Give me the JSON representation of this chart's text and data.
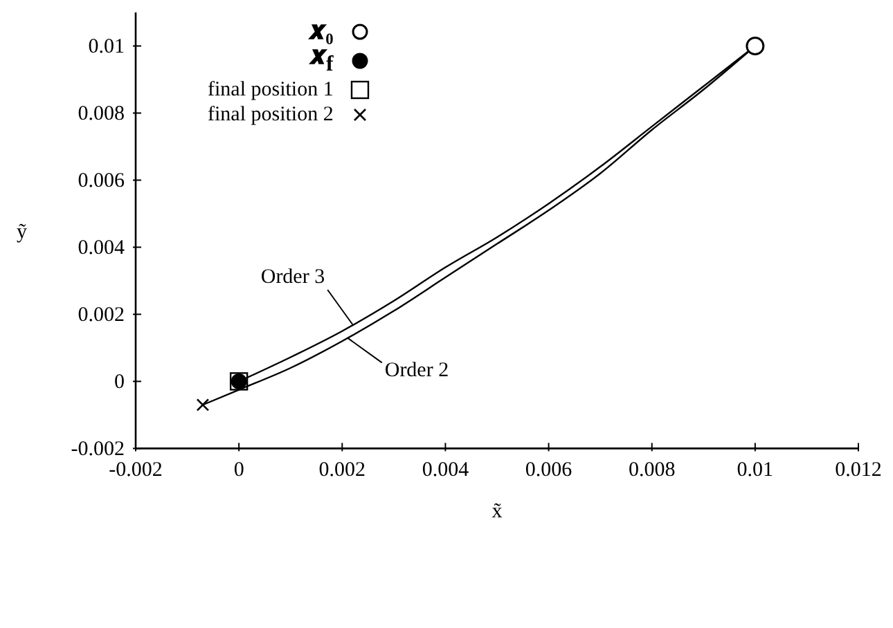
{
  "chart_data": {
    "type": "line",
    "xlabel": "x̃",
    "ylabel": "ỹ",
    "xlim": [
      -0.002,
      0.012
    ],
    "xticks": [
      -0.002,
      0,
      0.002,
      0.004,
      0.006,
      0.008,
      0.01,
      0.012
    ],
    "ylim": [
      -0.002,
      0.011
    ],
    "yticks": [
      -0.002,
      0,
      0.002,
      0.004,
      0.006,
      0.008,
      0.01
    ],
    "grid": false,
    "legend": "top left",
    "line_style": "solid",
    "series": [
      {
        "color": "#000000",
        "x": [
          0,
          0.001,
          0.002,
          0.003,
          0.004,
          0.005,
          0.006,
          0.007,
          0.008,
          0.009,
          0.01
        ],
        "values": [
          0,
          0.00072,
          0.0015,
          0.0024,
          0.0034,
          0.0043,
          0.0053,
          0.0064,
          0.0076,
          0.0088,
          0.01
        ]
      },
      {
        "color": "#000000",
        "x": [
          -0.0007,
          0,
          0.001,
          0.002,
          0.003,
          0.004,
          0.005,
          0.006,
          0.007,
          0.008,
          0.009,
          0.01
        ],
        "values": [
          -0.0007,
          -0.00025,
          0.0004,
          0.0012,
          0.0021,
          0.0031,
          0.0041,
          0.0051,
          0.0062,
          0.0075,
          0.0087,
          0.01
        ]
      },
      {
        "type": "scatter",
        "name": "𝒙₀",
        "color": "#ffffff",
        "marker": "circle",
        "x": [
          0.01
        ],
        "values": [
          0.01
        ]
      },
      {
        "type": "scatter",
        "name": "𝒙$_{f}$",
        "color": "#000000",
        "marker": "circle",
        "x": [
          0
        ],
        "values": [
          0
        ]
      },
      {
        "type": "scatter",
        "name": "final position 1",
        "color": "#000000",
        "marker": "square",
        "x": [
          0
        ],
        "values": [
          0
        ]
      },
      {
        "type": "scatter",
        "name": "final position 2",
        "color": "#000000",
        "marker": "cross",
        "x": [
          -0.0007
        ],
        "values": [
          -0.0007
        ]
      }
    ],
    "annotations": [
      {
        "text": "Order 3",
        "x": 0.0022,
        "y": 0.0017
      },
      {
        "text": "Order 2",
        "x": 0.0021,
        "y": 0.0013
      }
    ]
  }
}
